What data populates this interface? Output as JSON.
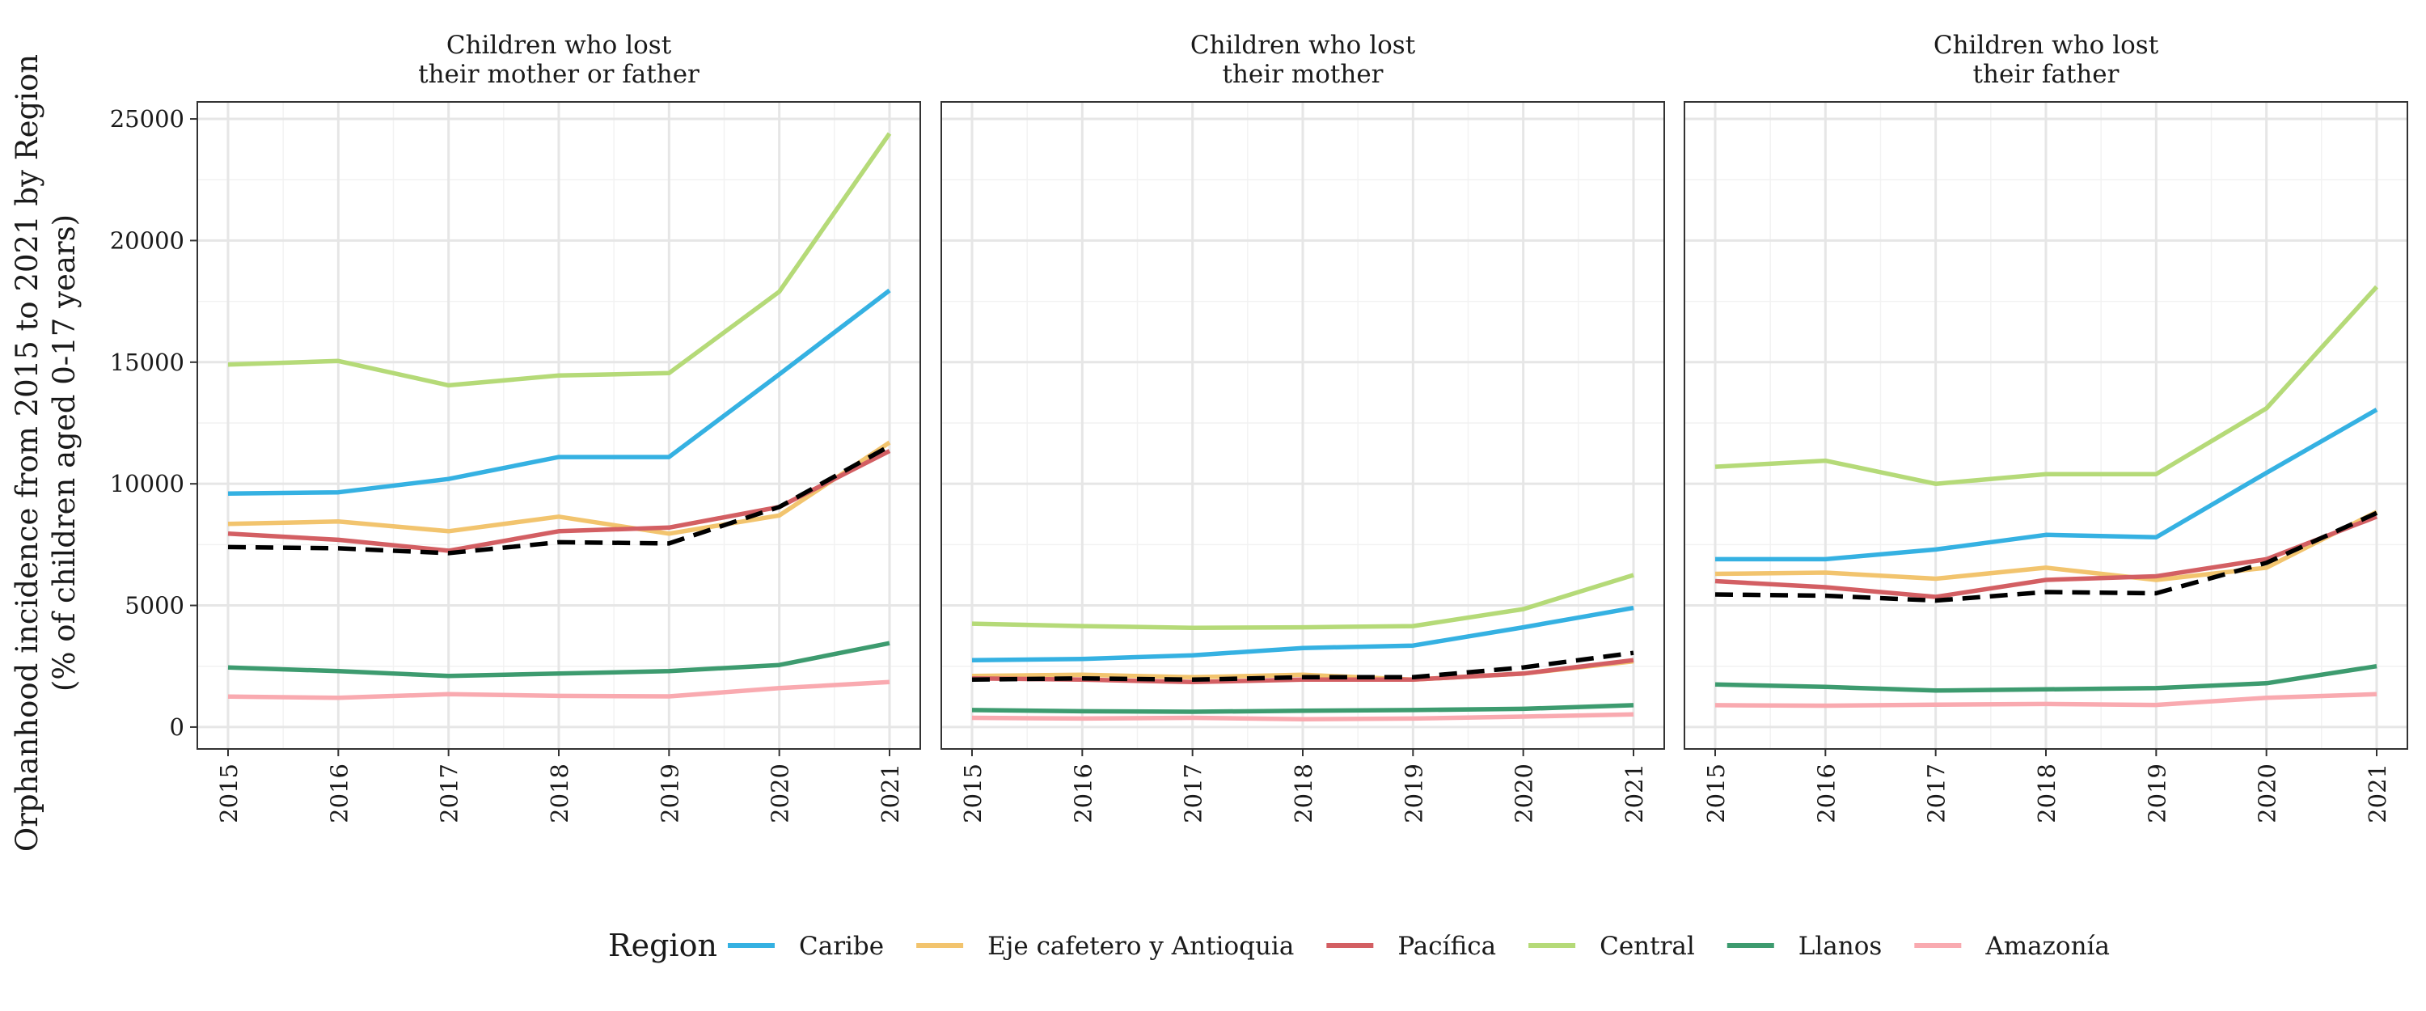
{
  "chart_data": {
    "type": "line",
    "ylabel_line1": "Orphanhood incidence from 2015 to 2021 by Region",
    "ylabel_line2": "(% of children aged 0-17 years)",
    "x": [
      2015,
      2016,
      2017,
      2018,
      2019,
      2020,
      2021
    ],
    "x_tick_labels": [
      "2015",
      "2016",
      "2017",
      "2018",
      "2019",
      "2020",
      "2021"
    ],
    "ylim": [
      -900,
      25700
    ],
    "y_ticks": [
      0,
      5000,
      10000,
      15000,
      20000,
      25000
    ],
    "y_tick_labels": [
      "0",
      "5000",
      "10000",
      "15000",
      "20000",
      "25000"
    ],
    "grid": true,
    "legend": {
      "title": "Region",
      "position": "bottom",
      "entries": [
        "Caribe",
        "Eje cafetero y Antioquia",
        "Pacífica",
        "Central",
        "Llanos",
        "Amazonía"
      ]
    },
    "colors": {
      "Caribe": "#35b1e2",
      "Eje cafetero y Antioquia": "#f2c46e",
      "Pacífica": "#d35f63",
      "Central": "#b5da78",
      "Llanos": "#3d9b6f",
      "Amazonía": "#f9aab0",
      "dashed": "#000000"
    },
    "panels": [
      {
        "title_line1": "Children who lost",
        "title_line2": "their mother or father",
        "series": [
          {
            "name": "Central",
            "values": [
              14900,
              15050,
              14050,
              14450,
              14550,
              17900,
              24400
            ]
          },
          {
            "name": "Caribe",
            "values": [
              9600,
              9650,
              10200,
              11100,
              11100,
              14500,
              17950
            ]
          },
          {
            "name": "Eje cafetero y Antioquia",
            "values": [
              8350,
              8450,
              8050,
              8650,
              7950,
              8700,
              11700
            ]
          },
          {
            "name": "Pacífica",
            "values": [
              7950,
              7700,
              7250,
              8050,
              8200,
              9050,
              11350
            ]
          },
          {
            "name": "Llanos",
            "values": [
              2450,
              2300,
              2100,
              2200,
              2300,
              2550,
              3450
            ]
          },
          {
            "name": "Amazonía",
            "values": [
              1250,
              1200,
              1350,
              1280,
              1260,
              1600,
              1850
            ]
          }
        ],
        "dashed": [
          7400,
          7350,
          7150,
          7600,
          7550,
          9050,
          11550
        ]
      },
      {
        "title_line1": "Children who lost",
        "title_line2": "their mother",
        "series": [
          {
            "name": "Central",
            "values": [
              4250,
              4150,
              4080,
              4100,
              4150,
              4850,
              6250
            ]
          },
          {
            "name": "Caribe",
            "values": [
              2750,
              2800,
              2950,
              3250,
              3350,
              4100,
              4900
            ]
          },
          {
            "name": "Eje cafetero y Antioquia",
            "values": [
              2100,
              2150,
              2050,
              2150,
              1950,
              2200,
              2700
            ]
          },
          {
            "name": "Pacífica",
            "values": [
              2000,
              1950,
              1850,
              1950,
              1950,
              2200,
              2750
            ]
          },
          {
            "name": "Llanos",
            "values": [
              700,
              650,
              630,
              670,
              700,
              750,
              900
            ]
          },
          {
            "name": "Amazonía",
            "values": [
              380,
              350,
              380,
              320,
              350,
              430,
              520
            ]
          }
        ],
        "dashed": [
          1950,
          2000,
          1950,
          2050,
          2050,
          2450,
          3050
        ]
      },
      {
        "title_line1": "Children who lost",
        "title_line2": "their father",
        "series": [
          {
            "name": "Central",
            "values": [
              10700,
              10950,
              10000,
              10400,
              10400,
              13100,
              18100
            ]
          },
          {
            "name": "Caribe",
            "values": [
              6900,
              6900,
              7300,
              7900,
              7800,
              10450,
              13050
            ]
          },
          {
            "name": "Eje cafetero y Antioquia",
            "values": [
              6300,
              6350,
              6100,
              6550,
              6050,
              6550,
              8850
            ]
          },
          {
            "name": "Pacífica",
            "values": [
              6000,
              5750,
              5350,
              6050,
              6200,
              6900,
              8650
            ]
          },
          {
            "name": "Llanos",
            "values": [
              1750,
              1650,
              1500,
              1550,
              1600,
              1800,
              2500
            ]
          },
          {
            "name": "Amazonía",
            "values": [
              900,
              880,
              920,
              950,
              910,
              1200,
              1350
            ]
          }
        ],
        "dashed": [
          5450,
          5400,
          5200,
          5550,
          5500,
          6750,
          8800
        ]
      }
    ]
  }
}
